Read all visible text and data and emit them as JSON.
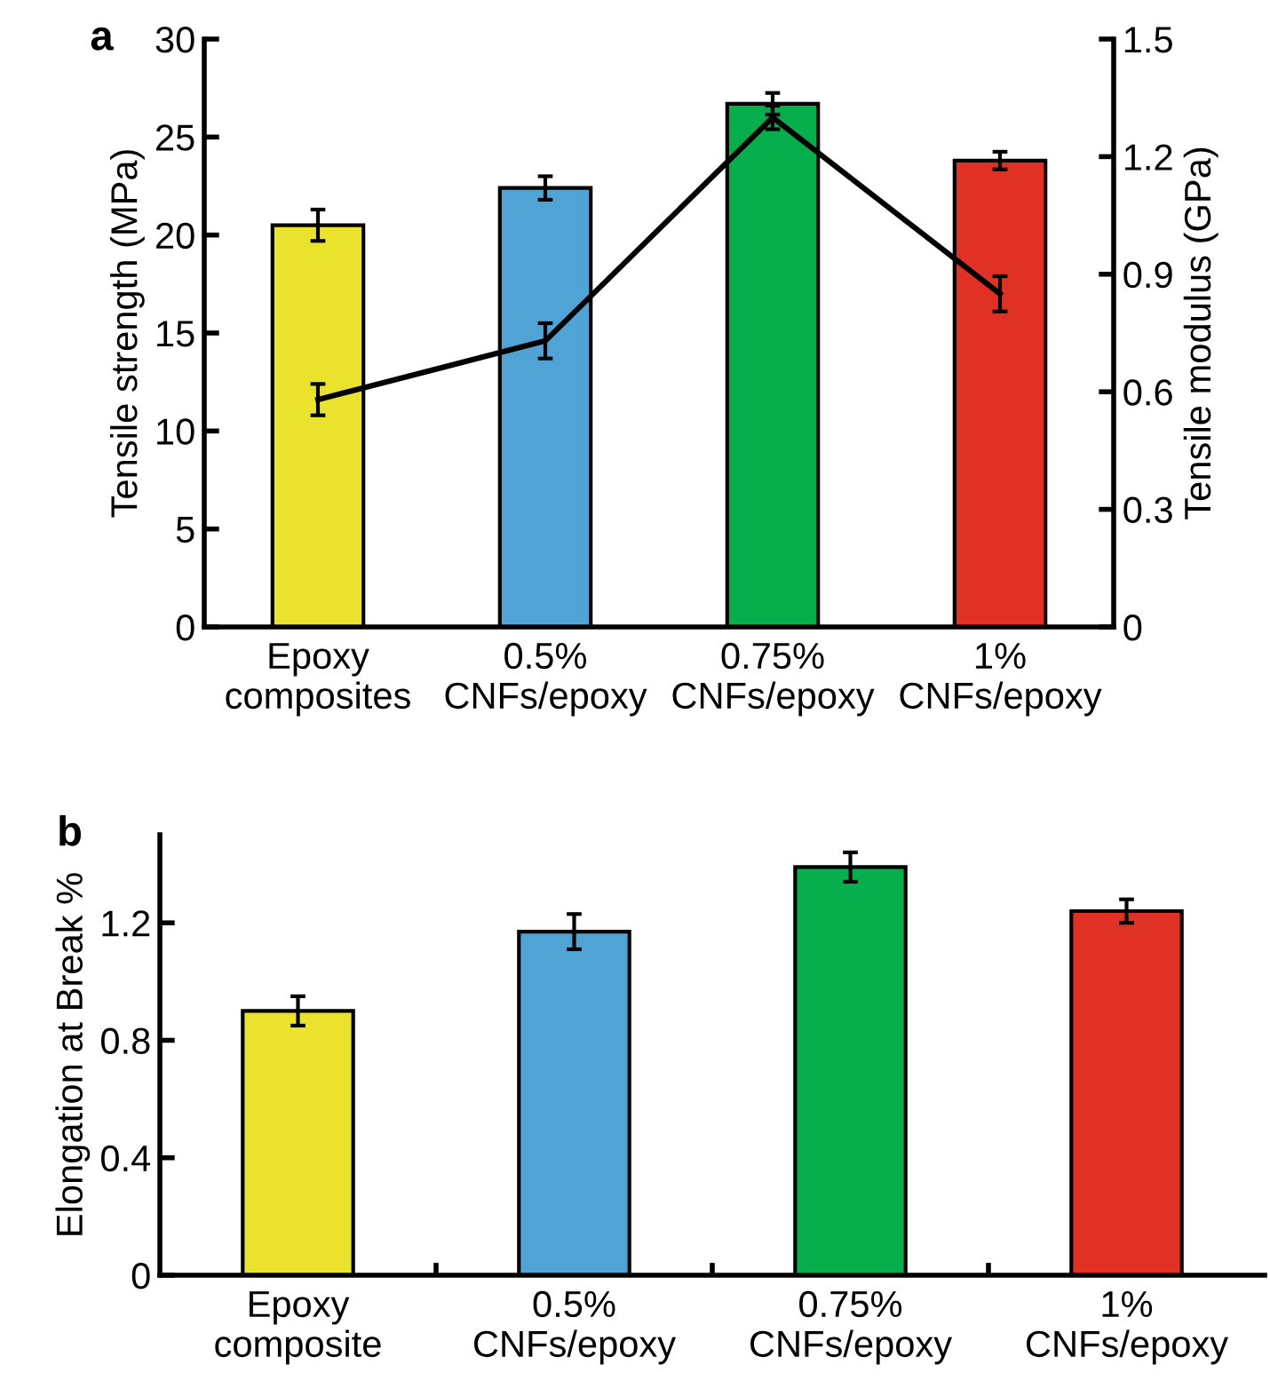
{
  "chart_data": [
    {
      "type": "bar",
      "title": "a",
      "ylabel": "Tensile strength (MPa)",
      "y2label": "Tensile modulus (GPa)",
      "categories": [
        "Epoxy\ncomposites",
        "0.5%\nCNFs/epoxy",
        "0.75%\nCNFs/epoxy",
        "1%\nCNFs/epoxy"
      ],
      "series": [
        {
          "type": "bar",
          "colors": [
            "#ebe22e",
            "#4fa3d5",
            "#06ae4c",
            "#e03124"
          ],
          "values": [
            20.5,
            22.4,
            26.7,
            23.8
          ],
          "errors": [
            0.8,
            0.6,
            0.55,
            0.45
          ]
        },
        {
          "type": "line",
          "axis": "y2",
          "color": "#000000",
          "values": [
            0.58,
            0.73,
            1.3,
            0.85
          ],
          "errors": [
            0.04,
            0.045,
            0.03,
            0.045
          ]
        }
      ],
      "ylim": [
        0,
        30
      ],
      "yticks": [
        0,
        5,
        10,
        15,
        20,
        25,
        30
      ],
      "y2lim": [
        0,
        1.5
      ],
      "y2ticks": [
        0,
        0.3,
        0.6,
        0.9,
        1.2,
        1.5
      ],
      "grid": false,
      "legend": false,
      "marker": "none",
      "line_style": "solid"
    },
    {
      "type": "bar",
      "title": "b",
      "ylabel": "Elongation at Break %",
      "categories": [
        "Epoxy\ncomposite",
        "0.5%\nCNFs/epoxy",
        "0.75%\nCNFs/epoxy",
        "1%\nCNFs/epoxy"
      ],
      "colors": [
        "#ebe22e",
        "#4fa3d5",
        "#06ae4c",
        "#e03124"
      ],
      "values": [
        0.9,
        1.17,
        1.39,
        1.24
      ],
      "errors": [
        0.05,
        0.06,
        0.05,
        0.04
      ],
      "ylim": [
        0,
        1.5
      ],
      "yticks": [
        0,
        0.4,
        0.8,
        1.2
      ],
      "grid": false,
      "legend": false
    }
  ]
}
